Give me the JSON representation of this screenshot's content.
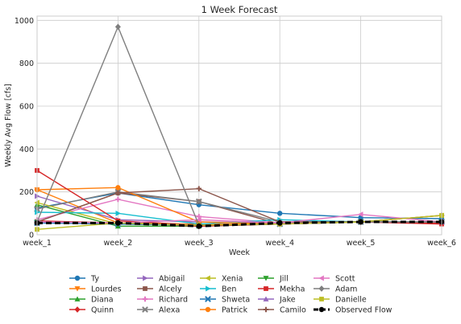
{
  "chart_data": {
    "type": "line",
    "title": "1 Week Forecast",
    "xlabel": "Week",
    "ylabel": "Weekly Avg Flow [cfs]",
    "categories": [
      "week_1",
      "week_2",
      "week_3",
      "week_4",
      "week_5",
      "week_6"
    ],
    "ylim": [
      0,
      1020
    ],
    "yticks": [
      0,
      200,
      400,
      600,
      800,
      1000
    ],
    "grid": true,
    "legend_placement": "below plot, 5 columns",
    "series": [
      {
        "name": "Ty",
        "color": "#1f77b4",
        "marker": "circle",
        "values": [
          125,
          195,
          140,
          100,
          80,
          75
        ]
      },
      {
        "name": "Lourdes",
        "color": "#ff7f0e",
        "marker": "triangle-down",
        "values": [
          210,
          55,
          50,
          50,
          60,
          60
        ]
      },
      {
        "name": "Diana",
        "color": "#2ca02c",
        "marker": "triangle-up",
        "values": [
          140,
          40,
          40,
          50,
          60,
          60
        ]
      },
      {
        "name": "Quinn",
        "color": "#d62728",
        "marker": "diamond",
        "values": [
          65,
          55,
          40,
          50,
          60,
          55
        ]
      },
      {
        "name": "Abigail",
        "color": "#9467bd",
        "marker": "triangle-right",
        "values": [
          180,
          70,
          60,
          55,
          60,
          60
        ]
      },
      {
        "name": "Alcely",
        "color": "#8c564b",
        "marker": "square",
        "values": [
          60,
          195,
          155,
          50,
          60,
          60
        ]
      },
      {
        "name": "Richard",
        "color": "#e377c2",
        "marker": "plus",
        "values": [
          70,
          165,
          85,
          55,
          60,
          60
        ]
      },
      {
        "name": "Alexa",
        "color": "#7f7f7f",
        "marker": "x",
        "values": [
          120,
          200,
          155,
          60,
          60,
          60
        ]
      },
      {
        "name": "Xenia",
        "color": "#bcbd22",
        "marker": "triangle-left",
        "values": [
          150,
          50,
          45,
          50,
          60,
          90
        ]
      },
      {
        "name": "Ben",
        "color": "#17becf",
        "marker": "triangle-right",
        "values": [
          105,
          100,
          50,
          70,
          60,
          60
        ]
      },
      {
        "name": "Shweta",
        "color": "#1f77b4",
        "marker": "x",
        "values": [
          55,
          50,
          45,
          50,
          60,
          60
        ]
      },
      {
        "name": "Patrick",
        "color": "#ff7f0e",
        "marker": "circle",
        "values": [
          210,
          220,
          60,
          50,
          60,
          60
        ]
      },
      {
        "name": "Jill",
        "color": "#2ca02c",
        "marker": "triangle-down",
        "values": [
          60,
          55,
          45,
          50,
          60,
          60
        ]
      },
      {
        "name": "Mekha",
        "color": "#d62728",
        "marker": "square",
        "values": [
          300,
          65,
          45,
          50,
          60,
          50
        ]
      },
      {
        "name": "Jake",
        "color": "#9467bd",
        "marker": "triangle-up",
        "values": [
          60,
          55,
          45,
          50,
          60,
          60
        ]
      },
      {
        "name": "Camilo",
        "color": "#8c564b",
        "marker": "plus",
        "values": [
          60,
          195,
          215,
          60,
          60,
          90
        ]
      },
      {
        "name": "Scott",
        "color": "#e377c2",
        "marker": "triangle-left",
        "values": [
          60,
          55,
          70,
          55,
          95,
          60
        ]
      },
      {
        "name": "Adam",
        "color": "#7f7f7f",
        "marker": "diamond",
        "values": [
          60,
          970,
          45,
          50,
          60,
          60
        ]
      },
      {
        "name": "Danielle",
        "color": "#bcbd22",
        "marker": "square",
        "values": [
          25,
          55,
          45,
          50,
          60,
          90
        ]
      },
      {
        "name": "Observed Flow",
        "color": "#000000",
        "marker": "circle",
        "dashed": true,
        "values": [
          55,
          55,
          40,
          55,
          60,
          60
        ]
      }
    ]
  }
}
